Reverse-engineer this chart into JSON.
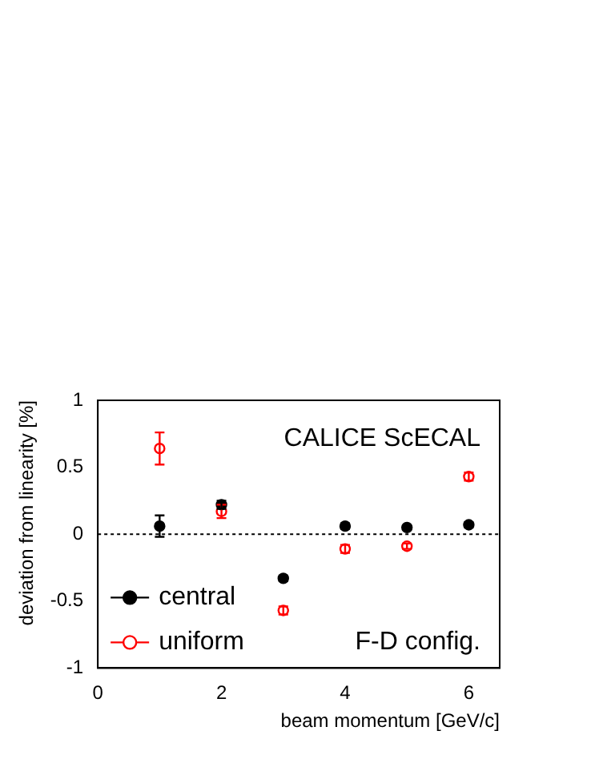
{
  "chart_data": {
    "type": "scatter",
    "xlabel": "beam momentum [GeV/c]",
    "ylabel": "deviation from linearity [%]",
    "annotations": [
      "CALICE ScECAL",
      "F-D config."
    ],
    "series": [
      {
        "name": "central",
        "color": "#000000",
        "x": [
          1,
          2,
          3,
          4,
          5,
          6
        ],
        "values": [
          0.06,
          0.22,
          -0.33,
          0.06,
          0.05,
          0.07
        ],
        "errors": [
          0.08,
          0.03,
          0.02,
          0.02,
          0.015,
          0.02
        ]
      },
      {
        "name": "uniform",
        "color": "#ff0000",
        "x": [
          1,
          2,
          3,
          4,
          5,
          6
        ],
        "values": [
          0.64,
          0.17,
          -0.57,
          -0.11,
          -0.09,
          0.43
        ],
        "errors": [
          0.12,
          0.05,
          0.03,
          0.03,
          0.02,
          0.03
        ]
      }
    ],
    "xlim": [
      0,
      6.5
    ],
    "xticks": [
      0,
      2,
      4,
      6
    ],
    "ylim": [
      -1,
      1
    ],
    "yticks": [
      -1,
      -0.5,
      0,
      0.5,
      1
    ],
    "ref_lines": [
      {
        "axis": "y",
        "value": 0,
        "line_style": "dotted"
      }
    ],
    "marker": "circle",
    "legend": "bottom left",
    "grid": false
  }
}
